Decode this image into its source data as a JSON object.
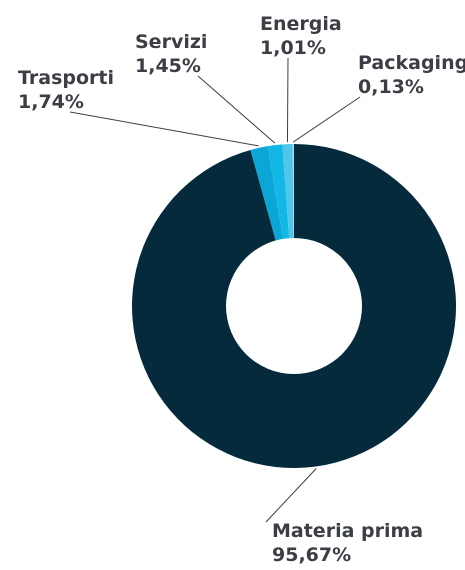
{
  "chart_data": {
    "type": "pie",
    "donut": true,
    "slices": [
      {
        "label": "Materia prima",
        "value_label": "95,67%",
        "value": 95.67,
        "color": "#042a3b"
      },
      {
        "label": "Trasporti",
        "value_label": "1,74%",
        "value": 1.74,
        "color": "#0aa7d6"
      },
      {
        "label": "Servizi",
        "value_label": "1,45%",
        "value": 1.45,
        "color": "#13b7e6"
      },
      {
        "label": "Energia",
        "value_label": "1,01%",
        "value": 1.01,
        "color": "#50c6ea"
      },
      {
        "label": "Packaging",
        "value_label": "0,13%",
        "value": 0.13,
        "color": "#9bd9f2"
      }
    ]
  }
}
